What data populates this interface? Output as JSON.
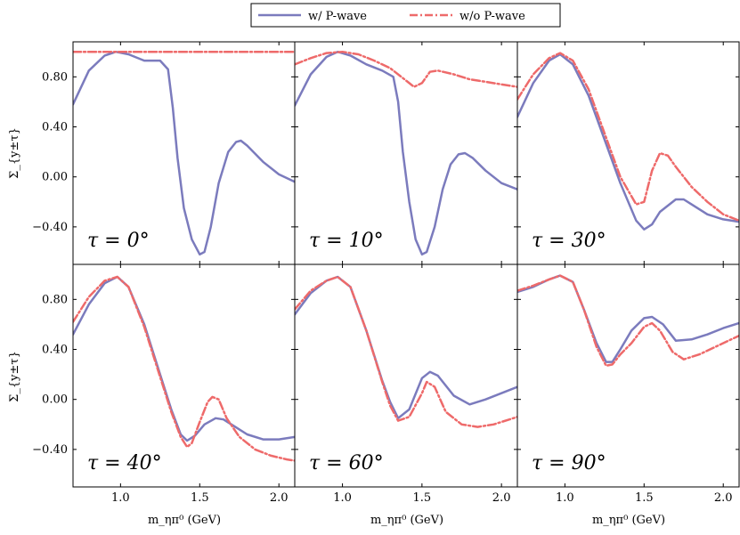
{
  "chart_data": {
    "type": "line",
    "layout": "2x3 panels, shared axes",
    "legend": {
      "placement": "top-center",
      "entries": [
        {
          "name": "w/ P-wave",
          "color": "#7b7bbd",
          "style": "solid"
        },
        {
          "name": "w/o P-wave",
          "color": "#ee6a6a",
          "style": "dash-dot"
        }
      ]
    },
    "xlabel": "m_ηπ⁰ (GeV)",
    "ylabel": "Σ_{y±τ}",
    "xlim": [
      0.7,
      2.1
    ],
    "ylim": [
      -0.7,
      1.08
    ],
    "x_ticks": [
      1.0,
      1.5,
      2.0
    ],
    "x_tick_labels": [
      "1.0",
      "1.5",
      "2.0"
    ],
    "y_ticks": [
      -0.4,
      0.0,
      0.4,
      0.8
    ],
    "y_tick_labels": [
      "−0.40",
      "0.00",
      "0.40",
      "0.80"
    ],
    "grid": false,
    "panels": [
      {
        "annotation": "τ = 0°",
        "series": [
          {
            "name": "w/ P-wave",
            "x": [
              0.7,
              0.8,
              0.9,
              0.97,
              1.05,
              1.15,
              1.2,
              1.25,
              1.3,
              1.33,
              1.36,
              1.4,
              1.45,
              1.5,
              1.53,
              1.57,
              1.62,
              1.68,
              1.73,
              1.76,
              1.8,
              1.9,
              2.0,
              2.1
            ],
            "y": [
              0.58,
              0.85,
              0.97,
              1.0,
              0.98,
              0.93,
              0.93,
              0.93,
              0.86,
              0.55,
              0.15,
              -0.25,
              -0.5,
              -0.62,
              -0.6,
              -0.4,
              -0.05,
              0.2,
              0.28,
              0.29,
              0.25,
              0.12,
              0.02,
              -0.04
            ]
          },
          {
            "name": "w/o P-wave",
            "x": [
              0.7,
              2.1
            ],
            "y": [
              1.0,
              1.0
            ]
          }
        ]
      },
      {
        "annotation": "τ = 10°",
        "series": [
          {
            "name": "w/ P-wave",
            "x": [
              0.7,
              0.8,
              0.9,
              0.97,
              1.05,
              1.15,
              1.25,
              1.32,
              1.35,
              1.38,
              1.42,
              1.46,
              1.5,
              1.53,
              1.58,
              1.63,
              1.68,
              1.73,
              1.77,
              1.82,
              1.9,
              2.0,
              2.1
            ],
            "y": [
              0.57,
              0.82,
              0.96,
              1.0,
              0.97,
              0.9,
              0.85,
              0.8,
              0.6,
              0.2,
              -0.2,
              -0.5,
              -0.62,
              -0.6,
              -0.4,
              -0.1,
              0.1,
              0.18,
              0.19,
              0.15,
              0.05,
              -0.05,
              -0.1
            ]
          },
          {
            "name": "w/o P-wave",
            "x": [
              0.7,
              0.8,
              0.9,
              1.0,
              1.1,
              1.2,
              1.3,
              1.4,
              1.45,
              1.5,
              1.55,
              1.6,
              1.7,
              1.8,
              1.9,
              2.0,
              2.1
            ],
            "y": [
              0.9,
              0.95,
              0.99,
              1.0,
              0.98,
              0.93,
              0.87,
              0.77,
              0.72,
              0.75,
              0.84,
              0.85,
              0.82,
              0.78,
              0.76,
              0.74,
              0.72
            ]
          }
        ]
      },
      {
        "annotation": "τ = 30°",
        "series": [
          {
            "name": "w/ P-wave",
            "x": [
              0.7,
              0.8,
              0.9,
              0.97,
              1.05,
              1.15,
              1.25,
              1.35,
              1.45,
              1.5,
              1.55,
              1.6,
              1.7,
              1.75,
              1.8,
              1.9,
              2.0,
              2.1
            ],
            "y": [
              0.48,
              0.75,
              0.93,
              0.98,
              0.9,
              0.65,
              0.3,
              -0.05,
              -0.35,
              -0.42,
              -0.38,
              -0.28,
              -0.18,
              -0.18,
              -0.22,
              -0.3,
              -0.34,
              -0.36
            ]
          },
          {
            "name": "w/o P-wave",
            "x": [
              0.7,
              0.8,
              0.9,
              0.97,
              1.05,
              1.15,
              1.25,
              1.35,
              1.45,
              1.5,
              1.55,
              1.6,
              1.65,
              1.7,
              1.8,
              1.9,
              2.0,
              2.1
            ],
            "y": [
              0.62,
              0.82,
              0.95,
              0.99,
              0.93,
              0.7,
              0.35,
              0.0,
              -0.22,
              -0.2,
              0.05,
              0.19,
              0.17,
              0.08,
              -0.08,
              -0.2,
              -0.3,
              -0.35
            ]
          }
        ]
      },
      {
        "annotation": "τ = 40°",
        "series": [
          {
            "name": "w/ P-wave",
            "x": [
              0.7,
              0.8,
              0.9,
              0.98,
              1.05,
              1.15,
              1.25,
              1.32,
              1.38,
              1.42,
              1.47,
              1.53,
              1.6,
              1.65,
              1.7,
              1.8,
              1.9,
              2.0,
              2.1
            ],
            "y": [
              0.52,
              0.76,
              0.93,
              0.98,
              0.9,
              0.6,
              0.2,
              -0.08,
              -0.28,
              -0.33,
              -0.29,
              -0.2,
              -0.15,
              -0.16,
              -0.2,
              -0.28,
              -0.32,
              -0.32,
              -0.3
            ]
          },
          {
            "name": "w/o P-wave",
            "x": [
              0.7,
              0.8,
              0.9,
              0.98,
              1.05,
              1.15,
              1.25,
              1.32,
              1.38,
              1.42,
              1.45,
              1.5,
              1.55,
              1.58,
              1.62,
              1.67,
              1.75,
              1.85,
              1.95,
              2.05,
              2.1
            ],
            "y": [
              0.62,
              0.82,
              0.95,
              0.98,
              0.9,
              0.58,
              0.18,
              -0.1,
              -0.3,
              -0.38,
              -0.35,
              -0.18,
              -0.02,
              0.02,
              0.0,
              -0.15,
              -0.3,
              -0.4,
              -0.45,
              -0.48,
              -0.49
            ]
          }
        ]
      },
      {
        "annotation": "τ = 60°",
        "series": [
          {
            "name": "w/ P-wave",
            "x": [
              0.7,
              0.8,
              0.9,
              0.97,
              1.05,
              1.15,
              1.25,
              1.3,
              1.35,
              1.42,
              1.5,
              1.55,
              1.6,
              1.7,
              1.8,
              1.9,
              2.0,
              2.1
            ],
            "y": [
              0.68,
              0.85,
              0.95,
              0.98,
              0.9,
              0.55,
              0.15,
              -0.02,
              -0.15,
              -0.08,
              0.17,
              0.22,
              0.19,
              0.03,
              -0.04,
              0.0,
              0.05,
              0.1
            ]
          },
          {
            "name": "w/o P-wave",
            "x": [
              0.7,
              0.8,
              0.9,
              0.97,
              1.05,
              1.15,
              1.25,
              1.3,
              1.35,
              1.42,
              1.5,
              1.53,
              1.58,
              1.65,
              1.75,
              1.85,
              1.95,
              2.05,
              2.1
            ],
            "y": [
              0.72,
              0.87,
              0.95,
              0.98,
              0.9,
              0.55,
              0.14,
              -0.05,
              -0.17,
              -0.14,
              0.05,
              0.14,
              0.1,
              -0.1,
              -0.2,
              -0.22,
              -0.2,
              -0.16,
              -0.14
            ]
          }
        ]
      },
      {
        "annotation": "τ = 90°",
        "series": [
          {
            "name": "w/ P-wave",
            "x": [
              0.7,
              0.8,
              0.9,
              0.97,
              1.05,
              1.12,
              1.2,
              1.26,
              1.3,
              1.35,
              1.42,
              1.5,
              1.55,
              1.62,
              1.7,
              1.8,
              1.9,
              2.0,
              2.1
            ],
            "y": [
              0.86,
              0.9,
              0.96,
              0.99,
              0.94,
              0.72,
              0.45,
              0.3,
              0.3,
              0.4,
              0.55,
              0.65,
              0.66,
              0.6,
              0.47,
              0.48,
              0.52,
              0.57,
              0.61
            ]
          },
          {
            "name": "w/o P-wave",
            "x": [
              0.7,
              0.8,
              0.9,
              0.97,
              1.05,
              1.12,
              1.2,
              1.26,
              1.3,
              1.35,
              1.42,
              1.5,
              1.55,
              1.6,
              1.68,
              1.75,
              1.85,
              1.95,
              2.05,
              2.1
            ],
            "y": [
              0.87,
              0.91,
              0.96,
              0.99,
              0.94,
              0.72,
              0.42,
              0.27,
              0.28,
              0.36,
              0.45,
              0.58,
              0.61,
              0.55,
              0.38,
              0.32,
              0.36,
              0.42,
              0.48,
              0.51
            ]
          }
        ]
      }
    ]
  }
}
